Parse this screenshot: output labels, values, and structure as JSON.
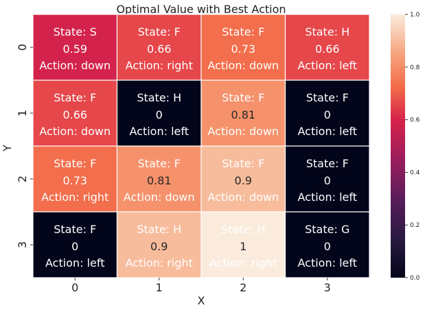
{
  "chart_data": {
    "type": "heatmap",
    "title": "Optimal Value with Best Action",
    "xlabel": "X",
    "ylabel": "Y",
    "x_ticks": [
      "0",
      "1",
      "2",
      "3"
    ],
    "y_ticks": [
      "0",
      "1",
      "2",
      "3"
    ],
    "value_range": [
      0,
      1
    ],
    "colorbar_ticks": [
      "0.0",
      "0.2",
      "0.4",
      "0.6",
      "0.8",
      "1.0"
    ],
    "colormap": "rocket",
    "state_prefix": "State: ",
    "action_prefix": "Action: ",
    "rows": [
      [
        {
          "state": "S",
          "value": 0.59,
          "action": "down"
        },
        {
          "state": "F",
          "value": 0.66,
          "action": "right"
        },
        {
          "state": "F",
          "value": 0.73,
          "action": "down"
        },
        {
          "state": "H",
          "value": 0.66,
          "action": "left"
        }
      ],
      [
        {
          "state": "F",
          "value": 0.66,
          "action": "down"
        },
        {
          "state": "H",
          "value": 0,
          "action": "left"
        },
        {
          "state": "F",
          "value": 0.81,
          "action": "down"
        },
        {
          "state": "F",
          "value": 0,
          "action": "left"
        }
      ],
      [
        {
          "state": "F",
          "value": 0.73,
          "action": "right"
        },
        {
          "state": "F",
          "value": 0.81,
          "action": "down"
        },
        {
          "state": "F",
          "value": 0.9,
          "action": "down"
        },
        {
          "state": "F",
          "value": 0,
          "action": "left"
        }
      ],
      [
        {
          "state": "F",
          "value": 0,
          "action": "left"
        },
        {
          "state": "H",
          "value": 0.9,
          "action": "right"
        },
        {
          "state": "H",
          "value": 1,
          "action": "right"
        },
        {
          "state": "G",
          "value": 0,
          "action": "left"
        }
      ]
    ]
  }
}
